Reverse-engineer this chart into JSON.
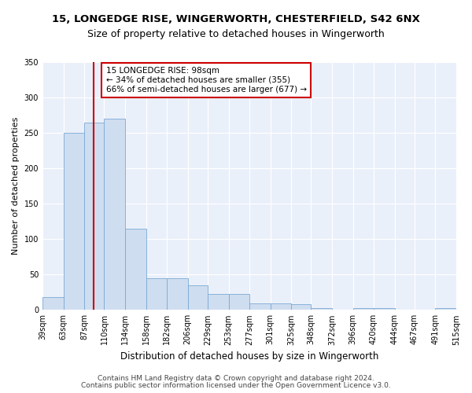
{
  "title1": "15, LONGEDGE RISE, WINGERWORTH, CHESTERFIELD, S42 6NX",
  "title2": "Size of property relative to detached houses in Wingerworth",
  "xlabel": "Distribution of detached houses by size in Wingerworth",
  "ylabel": "Number of detached properties",
  "footer1": "Contains HM Land Registry data © Crown copyright and database right 2024.",
  "footer2": "Contains public sector information licensed under the Open Government Licence v3.0.",
  "bin_labels": [
    "39sqm",
    "63sqm",
    "87sqm",
    "110sqm",
    "134sqm",
    "158sqm",
    "182sqm",
    "206sqm",
    "229sqm",
    "253sqm",
    "277sqm",
    "301sqm",
    "325sqm",
    "348sqm",
    "372sqm",
    "396sqm",
    "420sqm",
    "444sqm",
    "467sqm",
    "491sqm",
    "515sqm"
  ],
  "bin_edges": [
    39,
    63,
    87,
    110,
    134,
    158,
    182,
    206,
    229,
    253,
    277,
    301,
    325,
    348,
    372,
    396,
    420,
    444,
    467,
    491,
    515
  ],
  "bar_heights": [
    18,
    250,
    265,
    270,
    115,
    45,
    45,
    35,
    22,
    22,
    9,
    9,
    8,
    3,
    0,
    3,
    3,
    0,
    0,
    3
  ],
  "bar_color": "#cfddf0",
  "bar_edgecolor": "#7aaad4",
  "redline_x": 98,
  "annotation_text": "15 LONGEDGE RISE: 98sqm\n← 34% of detached houses are smaller (355)\n66% of semi-detached houses are larger (677) →",
  "annotation_box_color": "white",
  "annotation_box_edgecolor": "#cc0000",
  "redline_color": "#cc0000",
  "ylim": [
    0,
    350
  ],
  "yticks": [
    0,
    50,
    100,
    150,
    200,
    250,
    300,
    350
  ],
  "plot_background": "#eaf0fa",
  "grid_color": "white",
  "title1_fontsize": 9.5,
  "title2_fontsize": 9,
  "xlabel_fontsize": 8.5,
  "ylabel_fontsize": 8,
  "tick_fontsize": 7,
  "annot_fontsize": 7.5,
  "footer_fontsize": 6.5
}
